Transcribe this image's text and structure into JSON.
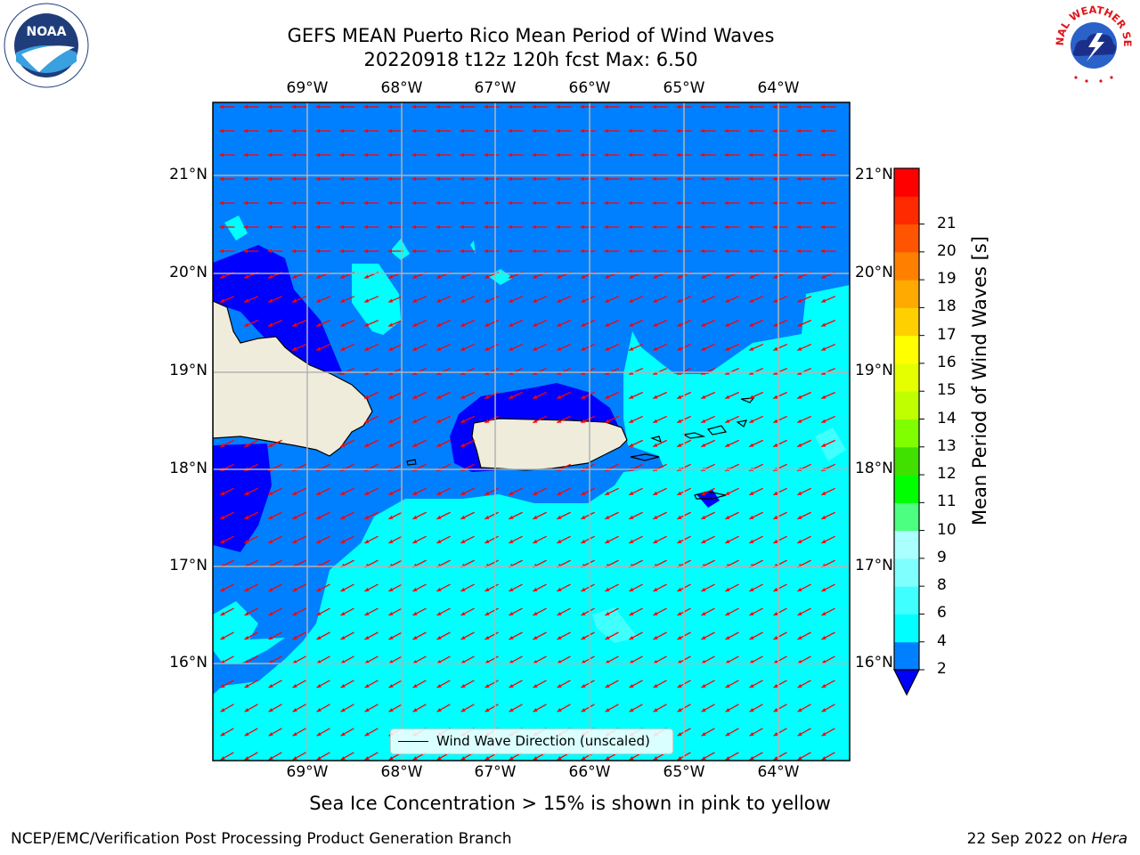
{
  "title": {
    "line1": "GEFS MEAN Puerto Rico Mean Period of Wind Waves",
    "line2": "20220918 t12z 120h fcst   Max: 6.50"
  },
  "map": {
    "lon_labels": [
      "69°W",
      "68°W",
      "67°W",
      "66°W",
      "65°W",
      "64°W"
    ],
    "lat_labels": [
      "21°N",
      "20°N",
      "19°N",
      "18°N",
      "17°N",
      "16°N"
    ],
    "legend_label": "Wind Wave Direction (unscaled)",
    "arrow_color": "#ff0000",
    "land_color": "#efecdc",
    "background_colors": {
      "deep": "#0000ff",
      "mid": "#0080ff",
      "light": "#00ffff"
    }
  },
  "colorbar": {
    "title": "Mean Period of Wind Waves [s]",
    "ticks": [
      "2",
      "4",
      "6",
      "8",
      "9",
      "10",
      "11",
      "12",
      "13",
      "14",
      "15",
      "16",
      "17",
      "18",
      "19",
      "20",
      "21"
    ],
    "colors": [
      "#0080ff",
      "#00ffff",
      "#40ffff",
      "#80ffff",
      "#aaffff",
      "#4dff80",
      "#00ff00",
      "#40e000",
      "#80ff00",
      "#bfff00",
      "#e5ff00",
      "#ffff00",
      "#ffd000",
      "#ffaa00",
      "#ff8000",
      "#ff5500",
      "#ff2a00",
      "#ff0000"
    ],
    "extend_color": "#0000ff"
  },
  "subtitle": "Sea Ice Concentration > 15% is shown in pink to yellow",
  "footer": {
    "left": "NCEP/EMC/Verification Post Processing Product Generation Branch",
    "right_date": "22 Sep 2022 on ",
    "right_machine": "Hera"
  },
  "logos": {
    "left": "NOAA",
    "right": "NATIONAL WEATHER SERVICE"
  }
}
